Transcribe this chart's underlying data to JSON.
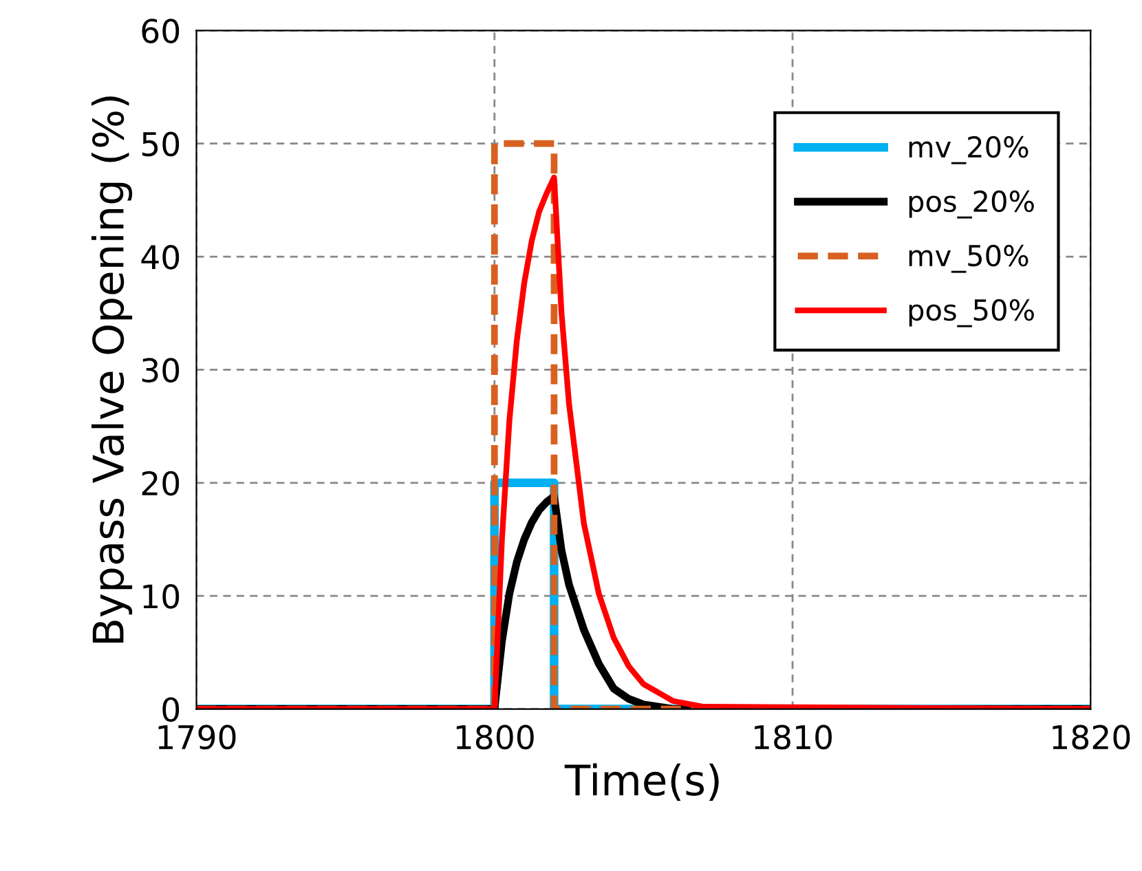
{
  "chart_data": {
    "type": "line",
    "xlabel": "Time(s)",
    "ylabel": "Bypass Valve Opening (%)",
    "xlim": [
      1790,
      1820
    ],
    "ylim": [
      0,
      60
    ],
    "xticks": [
      1790,
      1800,
      1810,
      1820
    ],
    "yticks": [
      0,
      10,
      20,
      30,
      40,
      50,
      60
    ],
    "grid": true,
    "legend": "top right",
    "marker": "none",
    "series": [
      {
        "name": "mv_20%",
        "color": "#00b0f0",
        "line_style": "solid",
        "x": [
          1790,
          1800,
          1800,
          1802,
          1802,
          1820
        ],
        "values": [
          0,
          0,
          20,
          20,
          0,
          0
        ]
      },
      {
        "name": "pos_20%",
        "color": "#000000",
        "line_style": "solid",
        "x": [
          1790,
          1800,
          1800.25,
          1800.5,
          1800.75,
          1801,
          1801.25,
          1801.5,
          1801.75,
          1802,
          1802.25,
          1802.5,
          1803,
          1803.5,
          1804,
          1804.5,
          1805,
          1806,
          1820
        ],
        "values": [
          0,
          0,
          6,
          10.2,
          13,
          15,
          16.5,
          17.6,
          18.3,
          18.8,
          14,
          11,
          7,
          4,
          1.8,
          0.9,
          0.4,
          0,
          0
        ]
      },
      {
        "name": "mv_50%",
        "color": "#d86020",
        "line_style": "dashed",
        "x": [
          1790,
          1800,
          1800,
          1802,
          1802,
          1820
        ],
        "values": [
          0,
          0,
          50,
          50,
          0,
          0
        ]
      },
      {
        "name": "pos_50%",
        "color": "#ff0000",
        "line_style": "solid",
        "x": [
          1790,
          1800,
          1800.25,
          1800.5,
          1800.75,
          1801,
          1801.25,
          1801.5,
          1801.75,
          1802,
          1802.25,
          1802.5,
          1803,
          1803.5,
          1804,
          1804.5,
          1805,
          1806,
          1807,
          1820
        ],
        "values": [
          0,
          0,
          15,
          25.5,
          32.6,
          37.7,
          41.4,
          44,
          45.6,
          47,
          35,
          27,
          16.4,
          10.2,
          6.3,
          3.8,
          2.2,
          0.7,
          0.2,
          0
        ]
      }
    ]
  }
}
